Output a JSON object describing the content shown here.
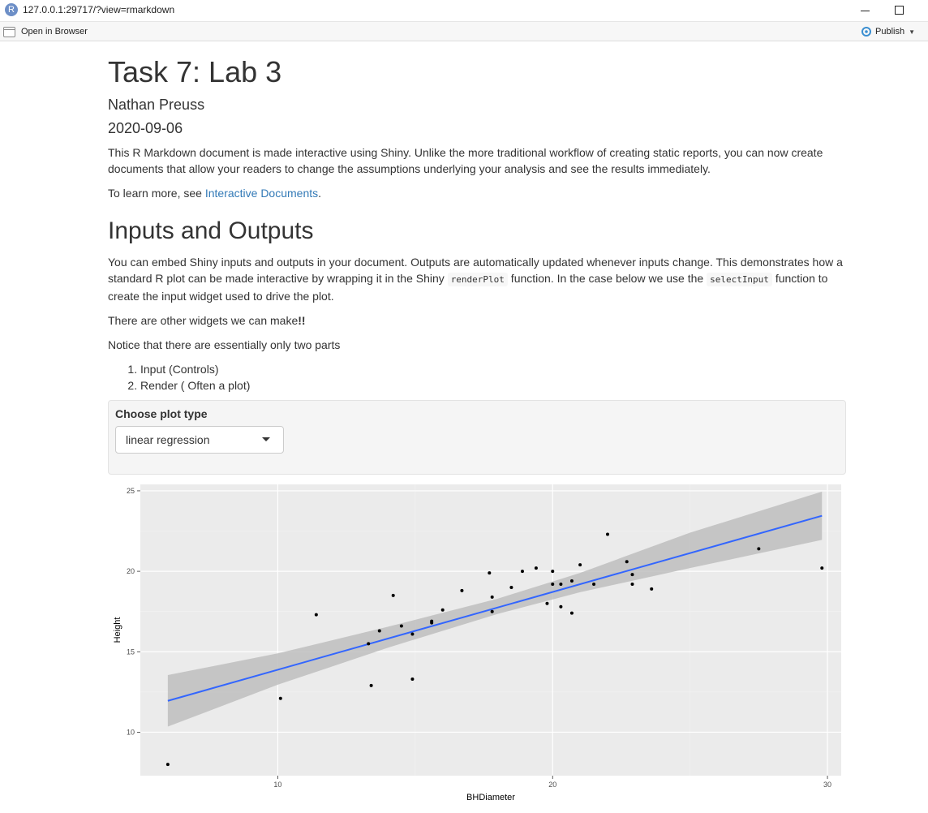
{
  "window": {
    "url": "127.0.0.1:29717/?view=rmarkdown",
    "app_icon_letter": "R"
  },
  "toolbar": {
    "open_browser_label": "Open in Browser",
    "publish_label": "Publish"
  },
  "document": {
    "title": "Task 7: Lab 3",
    "author": "Nathan Preuss",
    "date": "2020-09-06",
    "intro": "This R Markdown document is made interactive using Shiny. Unlike the more traditional workflow of creating static reports, you can now create documents that allow your readers to change the assumptions underlying your analysis and see the results immediately.",
    "learn_more_prefix": "To learn more, see ",
    "learn_more_link": "Interactive Documents",
    "learn_more_suffix": ".",
    "section_title": "Inputs and Outputs",
    "para1_a": "You can embed Shiny inputs and outputs in your document. Outputs are automatically updated whenever inputs change. This demonstrates how a standard R plot can be made interactive by wrapping it in the Shiny ",
    "para1_code1": "renderPlot",
    "para1_b": " function. In the case below we use the ",
    "para1_code2": "selectInput",
    "para1_c": " function to create the input widget used to drive the plot.",
    "para2_a": "There are other widgets we can make",
    "para2_bold": "!!",
    "para3": "Notice that there are essentially only two parts",
    "list": [
      "Input (Controls)",
      "Render ( Often a plot)"
    ]
  },
  "control": {
    "label": "Choose plot type",
    "selected": "linear regression"
  },
  "colors": {
    "link": "#337ab7",
    "panel_bg": "#ebebeb",
    "line": "#3366ff",
    "ribbon": "#bebebe",
    "point": "#000000"
  },
  "chart_data": {
    "type": "scatter",
    "xlabel": "BHDiameter",
    "ylabel": "Height",
    "xlim": [
      5.0,
      30.5
    ],
    "ylim": [
      7.3,
      25.4
    ],
    "x_ticks": [
      10,
      20,
      30
    ],
    "y_ticks": [
      10,
      15,
      20,
      25
    ],
    "grid": true,
    "points": [
      {
        "x": 6.0,
        "y": 8.0
      },
      {
        "x": 10.1,
        "y": 12.1
      },
      {
        "x": 11.4,
        "y": 17.3
      },
      {
        "x": 13.3,
        "y": 15.5
      },
      {
        "x": 13.4,
        "y": 12.9
      },
      {
        "x": 13.7,
        "y": 16.3
      },
      {
        "x": 14.2,
        "y": 18.5
      },
      {
        "x": 14.5,
        "y": 16.6
      },
      {
        "x": 14.9,
        "y": 16.1
      },
      {
        "x": 14.9,
        "y": 13.3
      },
      {
        "x": 15.6,
        "y": 16.8
      },
      {
        "x": 15.6,
        "y": 16.9
      },
      {
        "x": 16.0,
        "y": 17.6
      },
      {
        "x": 16.7,
        "y": 18.8
      },
      {
        "x": 17.7,
        "y": 19.9
      },
      {
        "x": 17.8,
        "y": 18.4
      },
      {
        "x": 17.8,
        "y": 17.5
      },
      {
        "x": 18.5,
        "y": 19.0
      },
      {
        "x": 18.9,
        "y": 20.0
      },
      {
        "x": 19.4,
        "y": 20.2
      },
      {
        "x": 19.8,
        "y": 18.0
      },
      {
        "x": 20.0,
        "y": 20.0
      },
      {
        "x": 20.0,
        "y": 19.2
      },
      {
        "x": 20.3,
        "y": 19.2
      },
      {
        "x": 20.3,
        "y": 17.8
      },
      {
        "x": 20.7,
        "y": 19.4
      },
      {
        "x": 20.7,
        "y": 17.4
      },
      {
        "x": 21.0,
        "y": 20.4
      },
      {
        "x": 21.5,
        "y": 19.2
      },
      {
        "x": 22.0,
        "y": 22.3
      },
      {
        "x": 22.7,
        "y": 20.6
      },
      {
        "x": 22.9,
        "y": 19.8
      },
      {
        "x": 22.9,
        "y": 19.2
      },
      {
        "x": 23.6,
        "y": 18.9
      },
      {
        "x": 27.5,
        "y": 21.4
      },
      {
        "x": 29.8,
        "y": 20.2
      }
    ],
    "fit": {
      "x_start": 6.0,
      "y_start": 11.95,
      "x_end": 29.8,
      "y_end": 23.45,
      "band": [
        {
          "x": 6.0,
          "lo": 10.35,
          "hi": 13.55
        },
        {
          "x": 10.0,
          "lo": 12.95,
          "hi": 14.9
        },
        {
          "x": 14.0,
          "lo": 15.25,
          "hi": 16.55
        },
        {
          "x": 18.0,
          "lo": 17.35,
          "hi": 18.3
        },
        {
          "x": 21.0,
          "lo": 18.7,
          "hi": 19.9
        },
        {
          "x": 25.0,
          "lo": 20.2,
          "hi": 22.4
        },
        {
          "x": 29.8,
          "lo": 21.95,
          "hi": 24.95
        }
      ]
    }
  }
}
